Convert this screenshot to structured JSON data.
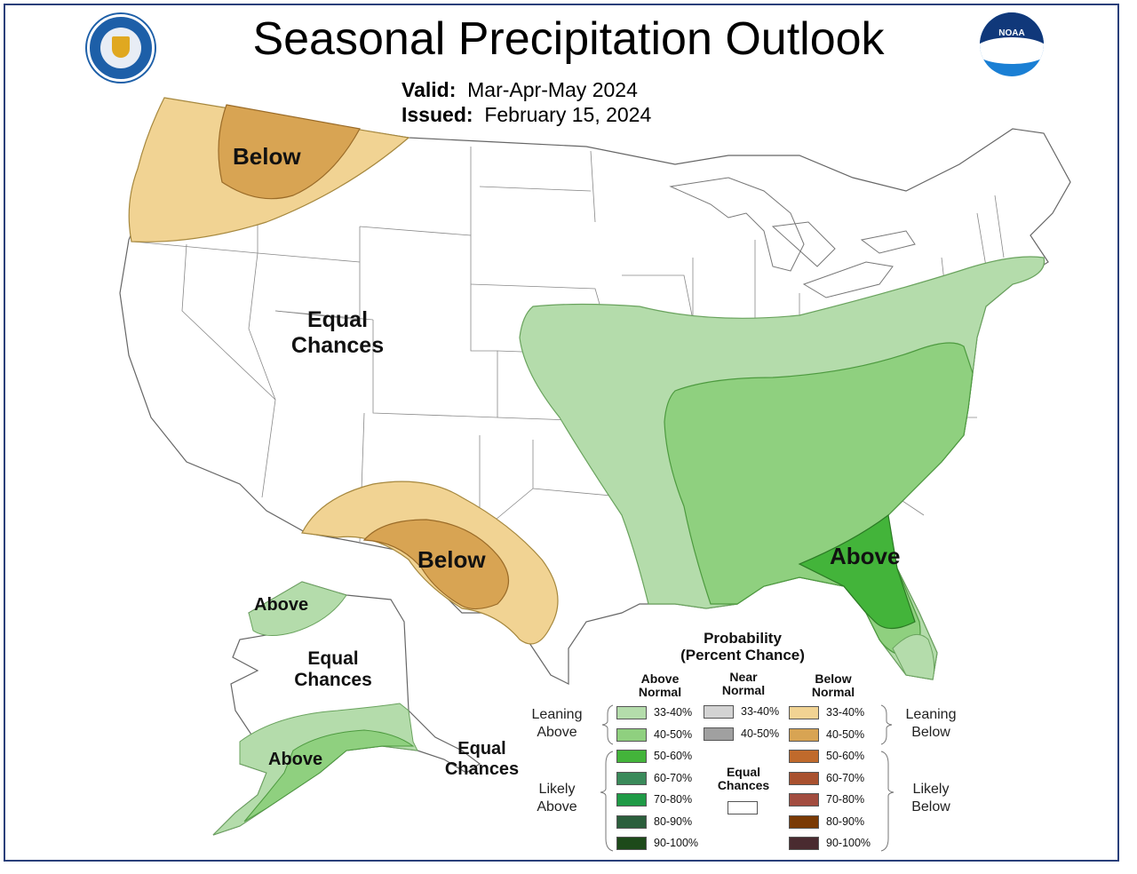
{
  "header": {
    "title": "Seasonal Precipitation Outlook",
    "valid_label": "Valid:",
    "valid_value": "Mar-Apr-May 2024",
    "issued_label": "Issued:",
    "issued_value": "February 15, 2024"
  },
  "logos": {
    "left": "dept-commerce-seal-icon",
    "right": "noaa-logo-icon",
    "right_text": "NOAA"
  },
  "map_labels": {
    "nw_below": "Below",
    "west_ec_1": "Equal",
    "west_ec_2": "Chances",
    "sw_below": "Below",
    "se_above": "Above",
    "ak_above_n": "Above",
    "ak_ec_1": "Equal",
    "ak_ec_2": "Chances",
    "ak_above_s": "Above",
    "ak_se_ec_1": "Equal",
    "ak_se_ec_2": "Chances"
  },
  "legend": {
    "title_1": "Probability",
    "title_2": "(Percent Chance)",
    "col_above_1": "Above",
    "col_above_2": "Normal",
    "col_near_1": "Near",
    "col_near_2": "Normal",
    "col_below_1": "Below",
    "col_below_2": "Normal",
    "leaning_above_1": "Leaning",
    "leaning_above_2": "Above",
    "likely_above_1": "Likely",
    "likely_above_2": "Above",
    "leaning_below_1": "Leaning",
    "leaning_below_2": "Below",
    "likely_below_1": "Likely",
    "likely_below_2": "Below",
    "equal_1": "Equal",
    "equal_2": "Chances",
    "above_bins": [
      {
        "label": "33-40%",
        "color": "#b4dcab"
      },
      {
        "label": "40-50%",
        "color": "#8fd07f"
      },
      {
        "label": "50-60%",
        "color": "#43b43a"
      },
      {
        "label": "60-70%",
        "color": "#3a8a5a"
      },
      {
        "label": "70-80%",
        "color": "#1f9a46"
      },
      {
        "label": "80-90%",
        "color": "#2b5e3c"
      },
      {
        "label": "90-100%",
        "color": "#1d4a1a"
      }
    ],
    "near_bins": [
      {
        "label": "33-40%",
        "color": "#d3d3d3"
      },
      {
        "label": "40-50%",
        "color": "#a0a0a0"
      }
    ],
    "below_bins": [
      {
        "label": "33-40%",
        "color": "#f1d393"
      },
      {
        "label": "40-50%",
        "color": "#d8a453"
      },
      {
        "label": "50-60%",
        "color": "#c06a2c"
      },
      {
        "label": "60-70%",
        "color": "#a9512f"
      },
      {
        "label": "70-80%",
        "color": "#a24c3f"
      },
      {
        "label": "80-90%",
        "color": "#7a3a05"
      },
      {
        "label": "90-100%",
        "color": "#4a2b30"
      }
    ]
  },
  "colors": {
    "state_lines": "#888888",
    "ec": "#ffffff"
  }
}
